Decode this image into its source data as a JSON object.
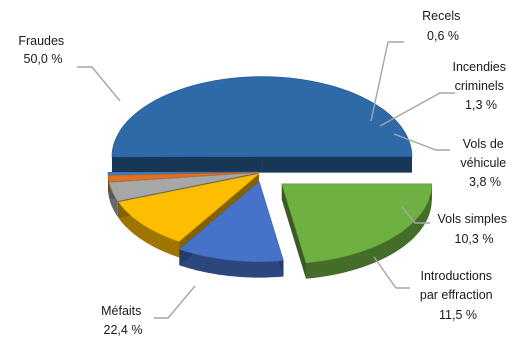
{
  "chart_data": {
    "type": "pie",
    "title": "",
    "legend": "none",
    "slices": [
      {
        "label": "Fraudes",
        "value_text": "50,0 %",
        "value": 50.0,
        "color": "#2e69a8"
      },
      {
        "label": "Recels",
        "value_text": "0,6 %",
        "value": 0.6,
        "color": "#3f7fc6"
      },
      {
        "label": "Incendies criminels",
        "value_text": "1,3 %",
        "value": 1.3,
        "color": "#e2701f"
      },
      {
        "label": "Vols de véhicule",
        "value_text": "3,8 %",
        "value": 3.8,
        "color": "#a7a7a7"
      },
      {
        "label": "Vols simples",
        "value_text": "10,3 %",
        "value": 10.3,
        "color": "#fdbd00"
      },
      {
        "label": "Introductions par effraction",
        "value_text": "11,5 %",
        "value": 11.5,
        "color": "#4673c9"
      },
      {
        "label": "Méfaits",
        "value_text": "22,4 %",
        "value": 22.4,
        "color": "#6fb043"
      }
    ]
  },
  "labels": {
    "fraudes": {
      "line1": "Fraudes",
      "line2": "50,0 %"
    },
    "recels": {
      "line1": "Recels",
      "line2": "0,6 %"
    },
    "incendies": {
      "line1": "Incendies",
      "line2": "criminels",
      "line3": "1,3 %"
    },
    "vols_vehicule": {
      "line1": "Vols de",
      "line2": "véhicule",
      "line3": "3,8 %"
    },
    "vols_simples": {
      "line1": "Vols simples",
      "line2": "10,3 %"
    },
    "introductions": {
      "line1": "Introductions",
      "line2": "par effraction",
      "line3": "11,5 %"
    },
    "mefaits": {
      "line1": "Méfaits",
      "line2": "22,4 %"
    }
  }
}
